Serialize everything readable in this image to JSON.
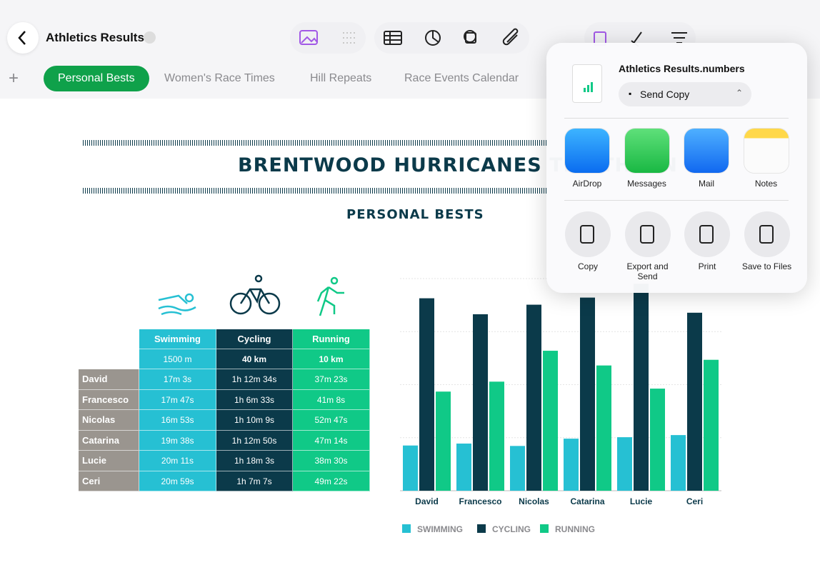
{
  "toolbar": {
    "doc_title": "Athletics Results"
  },
  "tabs": [
    "Personal Bests",
    "Women's Race Times",
    "Hill Repeats",
    "Race Events Calendar"
  ],
  "sheet": {
    "title": "BRENTWOOD HURRICANES TRIATHLON",
    "subtitle": "PERSONAL BESTS",
    "table": {
      "columns": [
        "Swimming",
        "Cycling",
        "Running"
      ],
      "distances": [
        "1500 m",
        "40 km",
        "10 km"
      ],
      "rows": [
        [
          "David",
          "17m 3s",
          "1h 12m 34s",
          "37m 23s"
        ],
        [
          "Francesco",
          "17m 47s",
          "1h 6m 33s",
          "41m 8s"
        ],
        [
          "Nicolas",
          "16m 53s",
          "1h 10m 9s",
          "52m 47s"
        ],
        [
          "Catarina",
          "19m 38s",
          "1h 12m 50s",
          "47m 14s"
        ],
        [
          "Lucie",
          "20m 11s",
          "1h 18m 3s",
          "38m 30s"
        ],
        [
          "Ceri",
          "20m 59s",
          "1h 7m 7s",
          "49m 22s"
        ]
      ]
    }
  },
  "chart_data": {
    "type": "bar",
    "categories": [
      "David",
      "Francesco",
      "Nicolas",
      "Catarina",
      "Lucie",
      "Ceri"
    ],
    "series": [
      {
        "name": "SWIMMING",
        "color": "#26c0d3",
        "values": [
          17.05,
          17.78,
          16.88,
          19.63,
          20.18,
          20.98
        ]
      },
      {
        "name": "CYCLING",
        "color": "#0b3a4a",
        "values": [
          72.57,
          66.55,
          70.15,
          72.83,
          78.05,
          67.12
        ]
      },
      {
        "name": "RUNNING",
        "color": "#10c987",
        "values": [
          37.38,
          41.13,
          52.78,
          47.23,
          38.5,
          49.37
        ]
      }
    ],
    "ylim": [
      0,
      80
    ],
    "yticks": [
      0,
      20,
      40,
      60,
      80
    ],
    "grid": true,
    "tick_labels": false
  },
  "share": {
    "file_name": "Athletics Results.numbers",
    "mode": "Send Copy",
    "apps": [
      "AirDrop",
      "Messages",
      "Mail",
      "Notes"
    ],
    "actions": [
      "Copy",
      "Export and Send",
      "Print",
      "Save to Files"
    ]
  }
}
